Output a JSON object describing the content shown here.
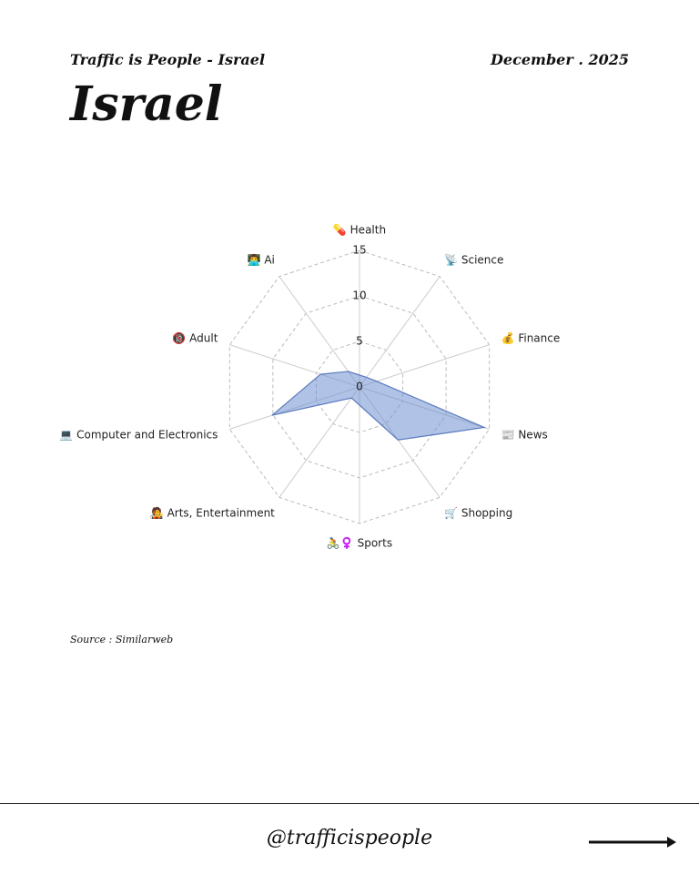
{
  "header": {
    "left": "Traffic is People - Israel",
    "right": "December . 2025",
    "title": "Israel"
  },
  "chart_data": {
    "type": "radar",
    "categories": [
      "💊 Health",
      "📡 Science",
      "💰 Finance",
      "📰 News",
      "🛒 Shopping",
      "🚴♀️ Sports",
      "🧑‍🎤 Arts, Entertainment",
      "💻 Computer and Electronics",
      "🔞 Adult",
      "👨‍💻 Ai"
    ],
    "values": [
      1.3,
      1.3,
      2,
      14.4,
      7.2,
      2,
      1.5,
      10.1,
      4.5,
      2.1
    ],
    "color": "#6f8fcf",
    "ylim": [
      0,
      15
    ],
    "yticks": [
      0,
      5,
      10,
      15
    ],
    "grid": true
  },
  "source": "Source : Similarweb",
  "footer": {
    "handle": "@trafficispeople"
  }
}
